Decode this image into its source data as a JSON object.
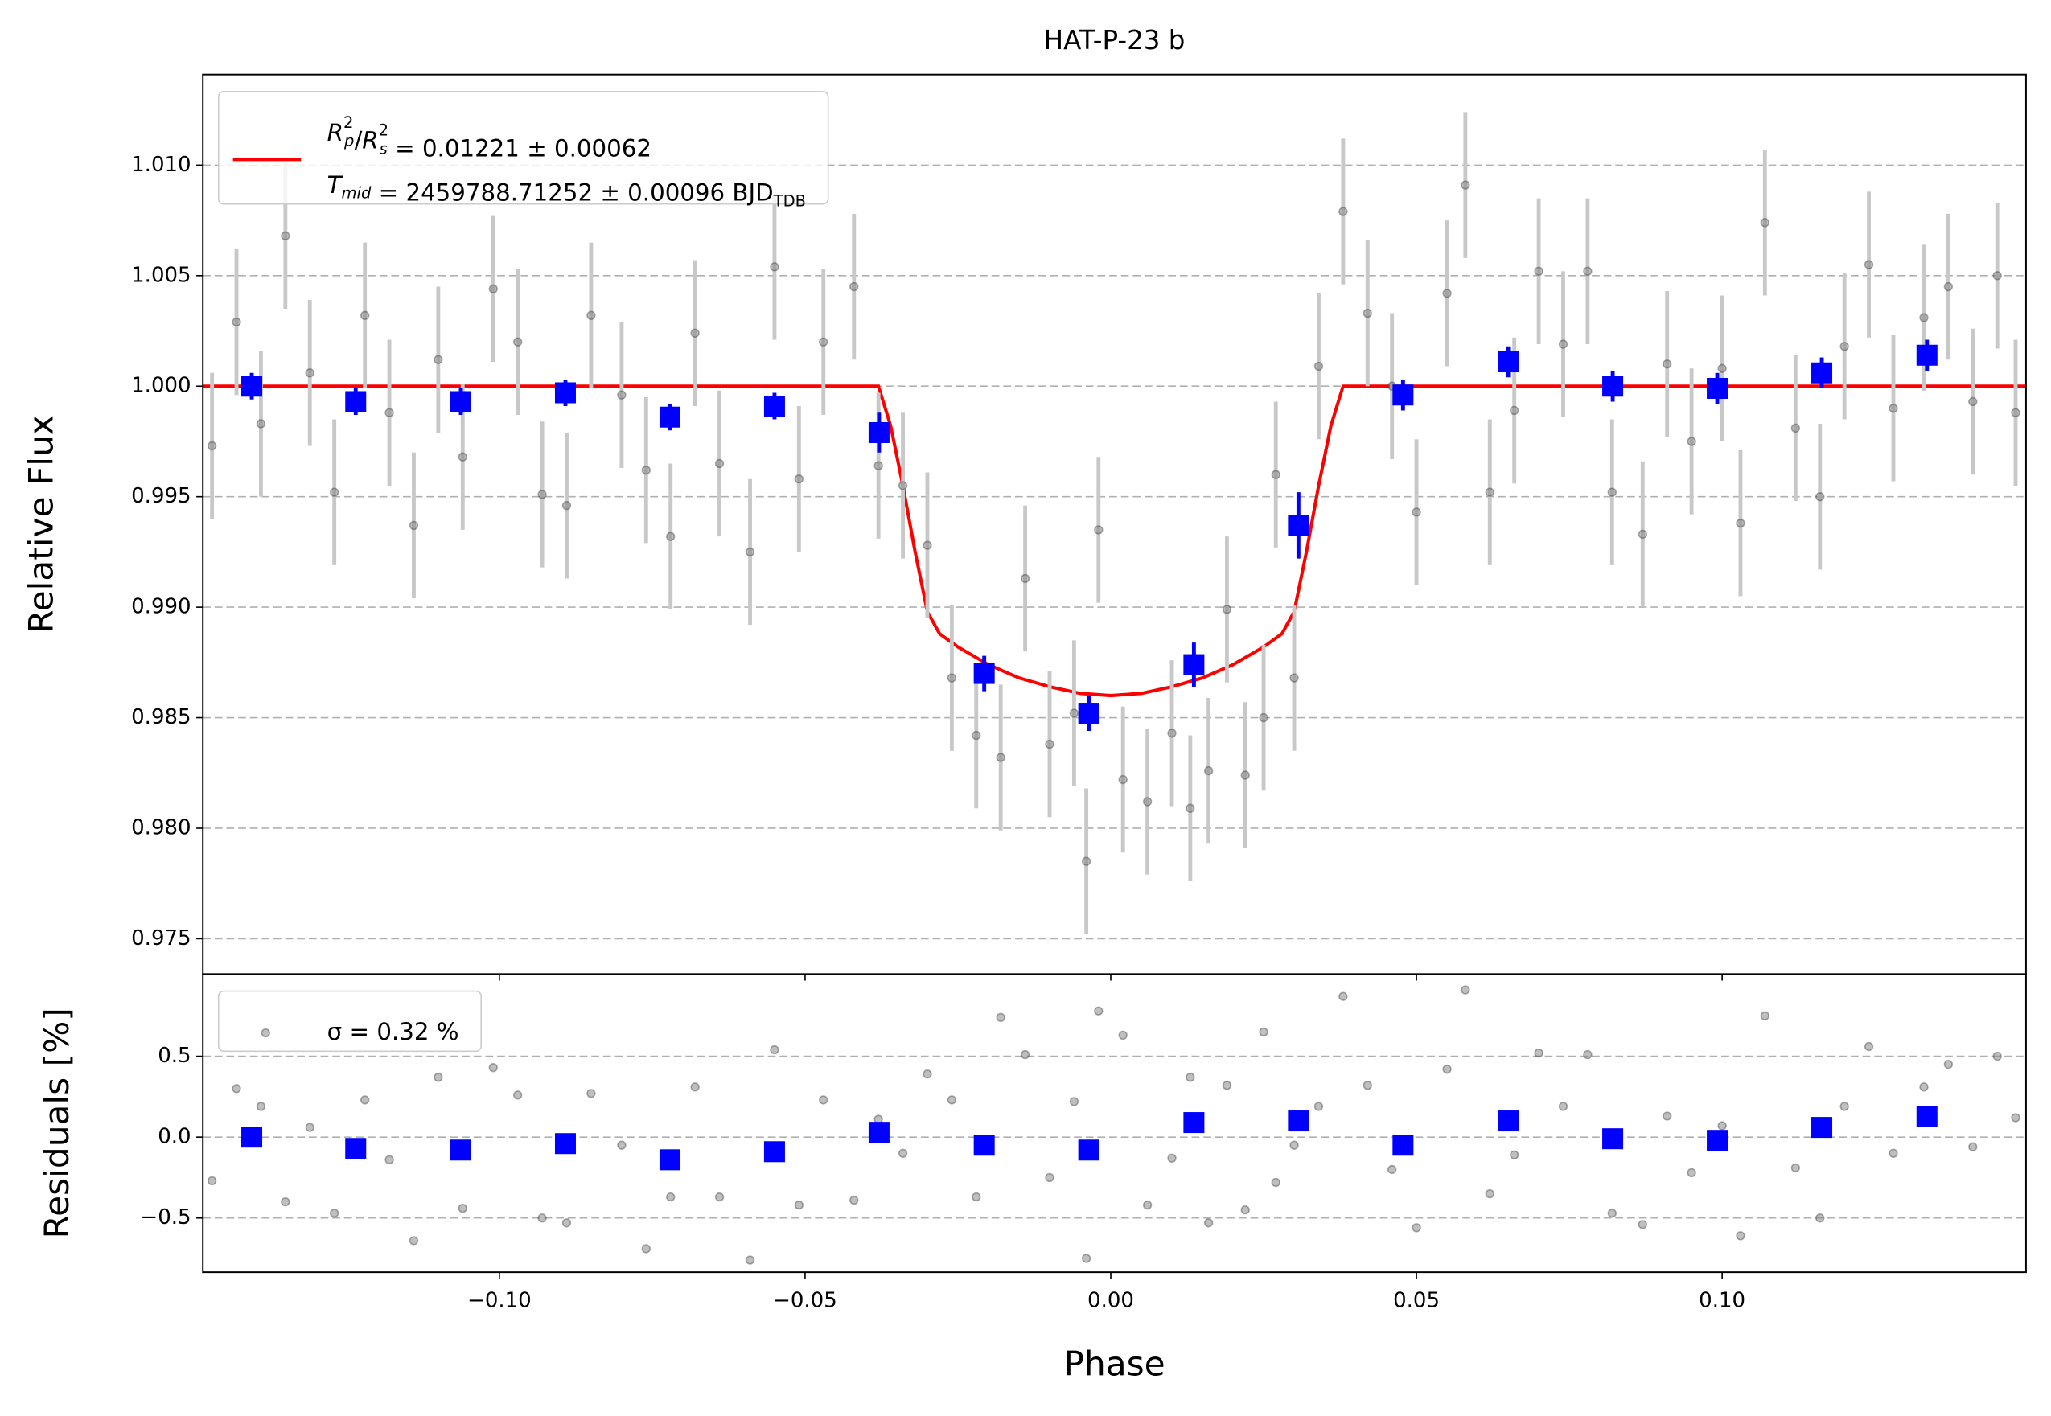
{
  "chart_data": [
    {
      "type": "scatter",
      "title": "HAT-P-23 b",
      "ylabel": "Relative Flux",
      "xlim": [
        -0.1485,
        0.1497
      ],
      "ylim": [
        0.9734,
        1.0141
      ],
      "grid": true,
      "legend": "upper left",
      "yticks": [
        0.975,
        {
          "value": 0.98,
          "label": "0.980"
        },
        0.985,
        {
          "value": 0.99,
          "label": "0.990"
        },
        0.995,
        {
          "value": 1.0,
          "label": "1.000"
        },
        1.005,
        {
          "value": 1.01,
          "label": "1.010"
        }
      ],
      "series": [
        {
          "mode": "line",
          "color": "#ff0000",
          "name": [
            [
              {
                "text": "R",
                "italic": true,
                "sup": "2",
                "sub": "p"
              },
              {
                "text": "/"
              },
              {
                "text": "R",
                "italic": true,
                "sup": "2",
                "sub": "s"
              },
              {
                "text": " = 0.01221 ± 0.00062"
              }
            ],
            [
              {
                "text": "T",
                "italic": true,
                "sub": "mid"
              },
              {
                "text": " = 2459788.71252 ± 0.00096 BJD",
                "sub": "TDB"
              }
            ]
          ],
          "x": [
            -0.1485,
            -0.038,
            -0.036,
            -0.034,
            -0.032,
            -0.03,
            -0.028,
            -0.025,
            -0.02,
            -0.015,
            -0.01,
            -0.005,
            0,
            0.005,
            0.01,
            0.015,
            0.02,
            0.025,
            0.028,
            0.03,
            0.032,
            0.034,
            0.036,
            0.038,
            0.1497
          ],
          "y": [
            1.0,
            1.0,
            0.9982,
            0.9955,
            0.9925,
            0.9898,
            0.9888,
            0.9882,
            0.9874,
            0.9868,
            0.9864,
            0.9861,
            0.986,
            0.9861,
            0.9864,
            0.9868,
            0.9874,
            0.9882,
            0.9888,
            0.9898,
            0.9925,
            0.9955,
            0.9982,
            1.0,
            1.0
          ]
        },
        {
          "mode": "points",
          "color": "#808080",
          "error": 0.0033,
          "x": [
            -0.147,
            -0.143,
            -0.139,
            -0.135,
            -0.131,
            -0.127,
            -0.122,
            -0.118,
            -0.114,
            -0.11,
            -0.106,
            -0.101,
            -0.097,
            -0.093,
            -0.089,
            -0.085,
            -0.08,
            -0.076,
            -0.072,
            -0.068,
            -0.064,
            -0.059,
            -0.055,
            -0.051,
            -0.047,
            -0.042,
            -0.038,
            -0.034,
            -0.03,
            -0.026,
            -0.022,
            -0.018,
            -0.014,
            -0.01,
            -0.006,
            -0.004,
            -0.002,
            0.002,
            0.006,
            0.01,
            0.013,
            0.016,
            0.019,
            0.022,
            0.025,
            0.027,
            0.03,
            0.034,
            0.038,
            0.042,
            0.046,
            0.05,
            0.055,
            0.058,
            0.062,
            0.066,
            0.07,
            0.074,
            0.078,
            0.082,
            0.087,
            0.091,
            0.095,
            0.1,
            0.103,
            0.107,
            0.112,
            0.116,
            0.12,
            0.124,
            0.128,
            0.133,
            0.137,
            0.141,
            0.145,
            0.148
          ],
          "y": [
            0.9973,
            1.0029,
            0.9983,
            1.0068,
            1.0006,
            0.9952,
            1.0032,
            0.9988,
            0.9937,
            1.0012,
            0.9968,
            1.0044,
            1.002,
            0.9951,
            0.9946,
            1.0032,
            0.9996,
            0.9962,
            0.9932,
            1.0024,
            0.9965,
            0.9925,
            1.0054,
            0.9958,
            1.002,
            1.0045,
            0.9964,
            0.9955,
            0.9928,
            0.9868,
            0.9842,
            0.9832,
            0.9913,
            0.9838,
            0.9852,
            0.9785,
            0.9935,
            0.9822,
            0.9812,
            0.9843,
            0.9809,
            0.9826,
            0.9899,
            0.9824,
            0.985,
            0.996,
            0.9868,
            1.0009,
            1.0079,
            1.0033,
            1.0,
            0.9943,
            1.0042,
            1.0091,
            0.9952,
            0.9989,
            1.0052,
            1.0019,
            1.0052,
            0.9952,
            0.9933,
            1.001,
            0.9975,
            1.0008,
            0.9938,
            1.0074,
            0.9981,
            0.995,
            1.0018,
            1.0055,
            0.999,
            1.0031,
            1.0045,
            0.9993,
            1.005,
            0.9988
          ]
        },
        {
          "mode": "squares",
          "color": "#0000ff",
          "x": [
            -0.1405,
            -0.1235,
            -0.1063,
            -0.0892,
            -0.0721,
            -0.055,
            -0.0379,
            -0.0207,
            -0.0036,
            0.0136,
            0.0307,
            0.0478,
            0.065,
            0.0821,
            0.0992,
            0.1163,
            0.1335
          ],
          "y": [
            1.0,
            0.9993,
            0.9993,
            0.9997,
            0.9986,
            0.9991,
            0.9979,
            0.987,
            0.9852,
            0.9874,
            0.9937,
            0.9996,
            1.0011,
            1.0,
            0.9999,
            1.0006,
            1.0014
          ],
          "yerr": [
            0.0006,
            0.0006,
            0.0006,
            0.0006,
            0.0006,
            0.0006,
            0.0009,
            0.0008,
            0.0008,
            0.001,
            0.0015,
            0.0007,
            0.0007,
            0.0007,
            0.0007,
            0.0007,
            0.0007
          ]
        }
      ]
    },
    {
      "type": "scatter",
      "ylabel": "Residuals [%]",
      "xlabel": "Phase",
      "xlim": [
        -0.1485,
        0.1497
      ],
      "ylim": [
        -0.835,
        1.008
      ],
      "grid": true,
      "legend": "upper left",
      "xticks": [
        {
          "value": -0.1,
          "label": "−0.10"
        },
        {
          "value": -0.05,
          "label": "−0.05"
        },
        {
          "value": 0,
          "label": "0.00"
        },
        0.05,
        {
          "value": 0.1,
          "label": "0.10"
        }
      ],
      "yticks": [
        {
          "value": -0.5,
          "label": "−0.5"
        },
        {
          "value": 0,
          "label": "0.0"
        },
        0.5
      ],
      "series": [
        {
          "mode": "points",
          "color": "#808080",
          "name": "σ = 0.32 %",
          "x": [
            -0.147,
            -0.143,
            -0.139,
            -0.135,
            -0.131,
            -0.127,
            -0.122,
            -0.118,
            -0.114,
            -0.11,
            -0.106,
            -0.101,
            -0.097,
            -0.093,
            -0.089,
            -0.085,
            -0.08,
            -0.076,
            -0.072,
            -0.068,
            -0.064,
            -0.059,
            -0.055,
            -0.051,
            -0.047,
            -0.042,
            -0.038,
            -0.034,
            -0.03,
            -0.026,
            -0.022,
            -0.018,
            -0.014,
            -0.01,
            -0.006,
            -0.004,
            -0.002,
            0.002,
            0.006,
            0.01,
            0.013,
            0.016,
            0.019,
            0.022,
            0.025,
            0.027,
            0.03,
            0.034,
            0.038,
            0.042,
            0.046,
            0.05,
            0.055,
            0.058,
            0.062,
            0.066,
            0.07,
            0.074,
            0.078,
            0.082,
            0.087,
            0.091,
            0.095,
            0.1,
            0.103,
            0.107,
            0.112,
            0.116,
            0.12,
            0.124,
            0.128,
            0.133,
            0.137,
            0.141,
            0.145,
            0.148
          ],
          "y": [
            -0.27,
            0.3,
            0.19,
            -0.4,
            0.06,
            -0.47,
            0.23,
            -0.14,
            -0.64,
            0.37,
            -0.44,
            0.43,
            0.26,
            -0.5,
            -0.53,
            0.27,
            -0.05,
            -0.69,
            -0.37,
            0.31,
            -0.37,
            -0.76,
            0.54,
            -0.42,
            0.23,
            -0.39,
            0.11,
            -0.1,
            0.39,
            0.23,
            -0.37,
            0.74,
            0.51,
            -0.25,
            0.22,
            -0.75,
            0.78,
            0.63,
            -0.42,
            -0.13,
            0.37,
            -0.53,
            0.32,
            -0.45,
            0.65,
            -0.28,
            -0.05,
            0.19,
            0.87,
            0.32,
            -0.2,
            -0.56,
            0.42,
            0.91,
            -0.35,
            -0.11,
            0.52,
            0.19,
            0.51,
            -0.47,
            -0.54,
            0.13,
            -0.22,
            0.07,
            -0.61,
            0.75,
            -0.19,
            -0.5,
            0.19,
            0.56,
            -0.1,
            0.31,
            0.45,
            -0.06,
            0.5,
            0.12
          ]
        },
        {
          "mode": "squares",
          "color": "#0000ff",
          "x": [
            -0.1405,
            -0.1235,
            -0.1063,
            -0.0892,
            -0.0721,
            -0.055,
            -0.0379,
            -0.0207,
            -0.0036,
            0.0136,
            0.0307,
            0.0478,
            0.065,
            0.0821,
            0.0992,
            0.1163,
            0.1335
          ],
          "y": [
            0.0,
            -0.07,
            -0.08,
            -0.04,
            -0.14,
            -0.09,
            0.03,
            -0.05,
            -0.08,
            0.09,
            0.1,
            -0.05,
            0.1,
            -0.01,
            -0.02,
            0.06,
            0.13
          ]
        }
      ]
    }
  ]
}
